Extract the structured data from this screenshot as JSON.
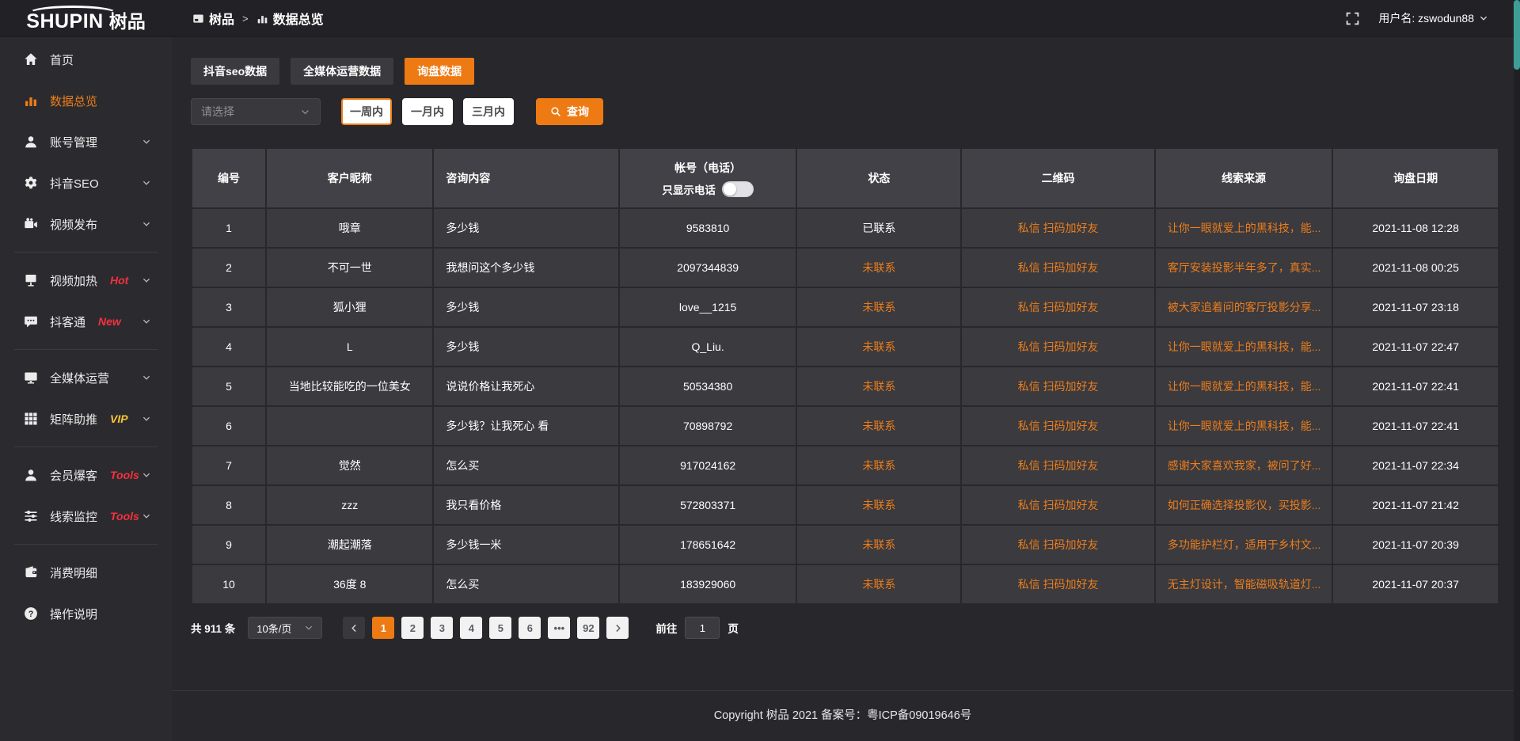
{
  "colors": {
    "accent": "#ee7d1a",
    "tab_active": "#ed7a13",
    "badge_red": "#f5313d",
    "badge_vip": "#fbc531",
    "status_pending": "#ee7d1a"
  },
  "header": {
    "brand_en": "SHUPIN",
    "brand_cn": "树品",
    "breadcrumb": [
      {
        "label": "树品",
        "icon": "screen-icon"
      },
      {
        "label": "数据总览",
        "icon": "bar-chart-icon"
      }
    ],
    "breadcrumb_separator": ">",
    "username": "用户名: zswodun88"
  },
  "sidebar": {
    "items": [
      {
        "label": "首页",
        "icon": "home-icon"
      },
      {
        "label": "数据总览",
        "icon": "bar-chart-icon",
        "active": true
      },
      {
        "label": "账号管理",
        "icon": "user-icon",
        "chevron": true
      },
      {
        "label": "抖音SEO",
        "icon": "gear-icon",
        "chevron": true
      },
      {
        "label": "视频发布",
        "icon": "video-icon",
        "chevron": true
      },
      {
        "label": "视频加热",
        "icon": "screen-stand-icon",
        "badge": "Hot",
        "chevron": true
      },
      {
        "label": "抖客通",
        "icon": "chat-icon",
        "badge": "New",
        "chevron": true
      },
      {
        "label": "全媒体运营",
        "icon": "monitor-icon",
        "chevron": true
      },
      {
        "label": "矩阵助推",
        "icon": "grid-icon",
        "badge": "VIP",
        "chevron": true
      },
      {
        "label": "会员爆客",
        "icon": "member-icon",
        "badge": "Tools",
        "chevron": true
      },
      {
        "label": "线索监控",
        "icon": "sliders-icon",
        "badge": "Tools",
        "chevron": true
      },
      {
        "label": "消费明细",
        "icon": "wallet-icon"
      },
      {
        "label": "操作说明",
        "icon": "question-icon"
      }
    ]
  },
  "tabs": [
    {
      "label": "抖音seo数据",
      "active": false
    },
    {
      "label": "全媒体运营数据",
      "active": false
    },
    {
      "label": "询盘数据",
      "active": true
    }
  ],
  "filters": {
    "select_placeholder": "请选择",
    "range_buttons": [
      {
        "label": "一周内",
        "selected": true
      },
      {
        "label": "一月内",
        "selected": false
      },
      {
        "label": "三月内",
        "selected": false
      }
    ],
    "search_label": "查询"
  },
  "table": {
    "columns": [
      "编号",
      "客户昵称",
      "咨询内容",
      "帐号（电话）",
      "状态",
      "二维码",
      "线索来源",
      "询盘日期"
    ],
    "phone_toggle_label": "只显示电话",
    "rows": [
      {
        "id": "1",
        "nickname": "哦章",
        "content": "多少钱",
        "account": "9583810",
        "status": "已联系",
        "qrcode": "私信 扫码加好友",
        "source": "让你一眼就爱上的黑科技，能...",
        "date": "2021-11-08 12:28"
      },
      {
        "id": "2",
        "nickname": "不可一世",
        "content": "我想问这个多少钱",
        "account": "2097344839",
        "status": "未联系",
        "qrcode": "私信 扫码加好友",
        "source": "客厅安装投影半年多了，真实...",
        "date": "2021-11-08 00:25"
      },
      {
        "id": "3",
        "nickname": "狐小狸",
        "content": "多少钱",
        "account": "love__1215",
        "status": "未联系",
        "qrcode": "私信 扫码加好友",
        "source": "被大家追着问的客厅投影分享...",
        "date": "2021-11-07 23:18"
      },
      {
        "id": "4",
        "nickname": "L",
        "content": "多少钱",
        "account": "Q_Liu.",
        "status": "未联系",
        "qrcode": "私信 扫码加好友",
        "source": "让你一眼就爱上的黑科技，能...",
        "date": "2021-11-07 22:47"
      },
      {
        "id": "5",
        "nickname": "当地比较能吃的一位美女",
        "content": "说说价格让我死心",
        "account": "50534380",
        "status": "未联系",
        "qrcode": "私信 扫码加好友",
        "source": "让你一眼就爱上的黑科技，能...",
        "date": "2021-11-07 22:41"
      },
      {
        "id": "6",
        "nickname": "",
        "content": "多少钱？让我死心 看",
        "account": "70898792",
        "status": "未联系",
        "qrcode": "私信 扫码加好友",
        "source": "让你一眼就爱上的黑科技，能...",
        "date": "2021-11-07 22:41"
      },
      {
        "id": "7",
        "nickname": "觉然",
        "content": "怎么买",
        "account": "917024162",
        "status": "未联系",
        "qrcode": "私信 扫码加好友",
        "source": "感谢大家喜欢我家，被问了好...",
        "date": "2021-11-07 22:34"
      },
      {
        "id": "8",
        "nickname": "zzz",
        "content": "我只看价格",
        "account": "572803371",
        "status": "未联系",
        "qrcode": "私信 扫码加好友",
        "source": "如何正确选择投影仪，买投影...",
        "date": "2021-11-07 21:42"
      },
      {
        "id": "9",
        "nickname": "潮起潮落",
        "content": "多少钱一米",
        "account": "178651642",
        "status": "未联系",
        "qrcode": "私信 扫码加好友",
        "source": "多功能护栏灯，适用于乡村文...",
        "date": "2021-11-07 20:39"
      },
      {
        "id": "10",
        "nickname": "36度 8",
        "content": "怎么买",
        "account": "183929060",
        "status": "未联系",
        "qrcode": "私信 扫码加好友",
        "source": "无主灯设计，智能磁吸轨道灯...",
        "date": "2021-11-07 20:37"
      }
    ]
  },
  "pagination": {
    "total": "共 911 条",
    "page_size": "10条/页",
    "pages": [
      "1",
      "2",
      "3",
      "4",
      "5",
      "6",
      "•••",
      "92"
    ],
    "active_page": "1",
    "goto_label": "前往",
    "goto_value": "1",
    "goto_suffix": "页"
  },
  "footer": {
    "copyright": "Copyright 树品 2021 备案号：粤ICP备09019646号"
  }
}
